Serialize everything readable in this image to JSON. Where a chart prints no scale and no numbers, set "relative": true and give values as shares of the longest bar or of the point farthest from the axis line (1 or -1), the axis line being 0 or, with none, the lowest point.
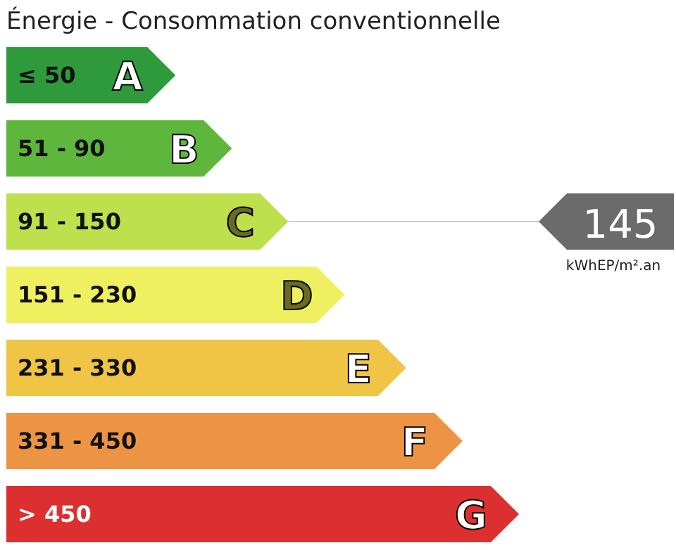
{
  "chart_data": {
    "type": "bar",
    "orientation": "horizontal",
    "relative": true,
    "title": "Énergie - Consommation conventionnelle",
    "categories": [
      "≤ 50",
      "51 - 90",
      "91 - 150",
      "151 - 230",
      "231 - 330",
      "331 - 450",
      "> 450"
    ],
    "values": [
      0.33,
      0.44,
      0.55,
      0.66,
      0.78,
      0.89,
      1.0
    ],
    "colors": [
      "#2f9a3c",
      "#5fb63c",
      "#bde04c",
      "#eef060",
      "#f0c444",
      "#ec9444",
      "#dc3030"
    ],
    "annotations": [
      {
        "text": "A",
        "y": "≤ 50",
        "x": 0.33
      },
      {
        "text": "B",
        "y": "51 - 90",
        "x": 0.44
      },
      {
        "text": "C",
        "y": "91 - 150",
        "x": 0.55
      },
      {
        "text": "D",
        "y": "151 - 230",
        "x": 0.66
      },
      {
        "text": "E",
        "y": "231 - 330",
        "x": 0.78
      },
      {
        "text": "F",
        "y": "331 - 450",
        "x": 0.89
      },
      {
        "text": "G",
        "y": "> 450",
        "x": 1.0
      },
      {
        "text": "145",
        "y": "91 - 150",
        "x": 0.55
      },
      "kWhEP/m².an"
    ]
  }
}
